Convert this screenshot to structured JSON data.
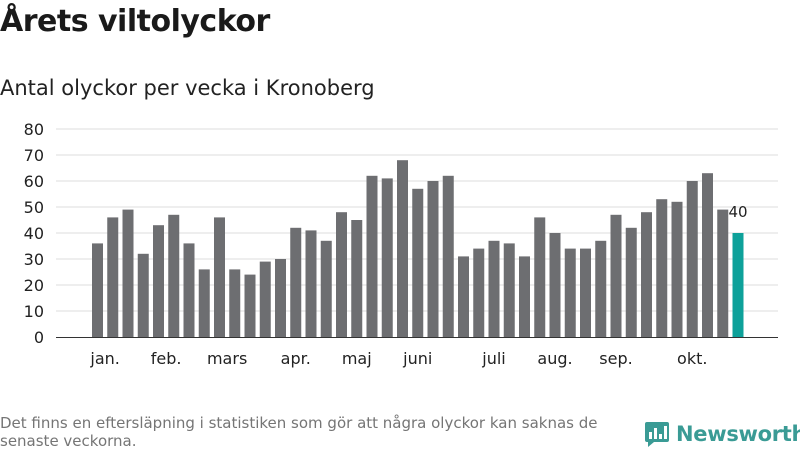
{
  "title": "Årets viltolyckor",
  "subtitle": "Antal olyckor per vecka i Kronoberg",
  "note": "Det finns en eftersläpning i statistiken som gör att några olyckor kan saknas de senaste veckorna.",
  "brand": {
    "name": "Newsworthy",
    "color": "#3a9b95"
  },
  "chart_data": {
    "type": "bar",
    "title": "",
    "xlabel": "",
    "ylabel": "",
    "ylim": [
      0,
      80
    ],
    "yticks": [
      0,
      10,
      20,
      30,
      40,
      50,
      60,
      70,
      80
    ],
    "grid": true,
    "values": [
      36,
      46,
      49,
      32,
      43,
      47,
      36,
      26,
      46,
      26,
      24,
      29,
      30,
      42,
      41,
      37,
      48,
      45,
      62,
      61,
      68,
      57,
      60,
      62,
      31,
      34,
      37,
      36,
      31,
      46,
      40,
      34,
      34,
      37,
      47,
      42,
      48,
      53,
      52,
      60,
      63,
      49,
      40
    ],
    "bar_color": "#6d6e71",
    "highlight_color": "#0ea19a",
    "highlight_index": 42,
    "month_labels": [
      {
        "label": "jan.",
        "bar": 0.5
      },
      {
        "label": "feb.",
        "bar": 4.5
      },
      {
        "label": "mars",
        "bar": 8.5
      },
      {
        "label": "apr.",
        "bar": 13
      },
      {
        "label": "maj",
        "bar": 17
      },
      {
        "label": "juni",
        "bar": 21
      },
      {
        "label": "juli",
        "bar": 26
      },
      {
        "label": "aug.",
        "bar": 30
      },
      {
        "label": "sep.",
        "bar": 34
      },
      {
        "label": "okt.",
        "bar": 39
      }
    ],
    "data_labels": [
      {
        "bar": 42,
        "text": "40"
      }
    ]
  }
}
